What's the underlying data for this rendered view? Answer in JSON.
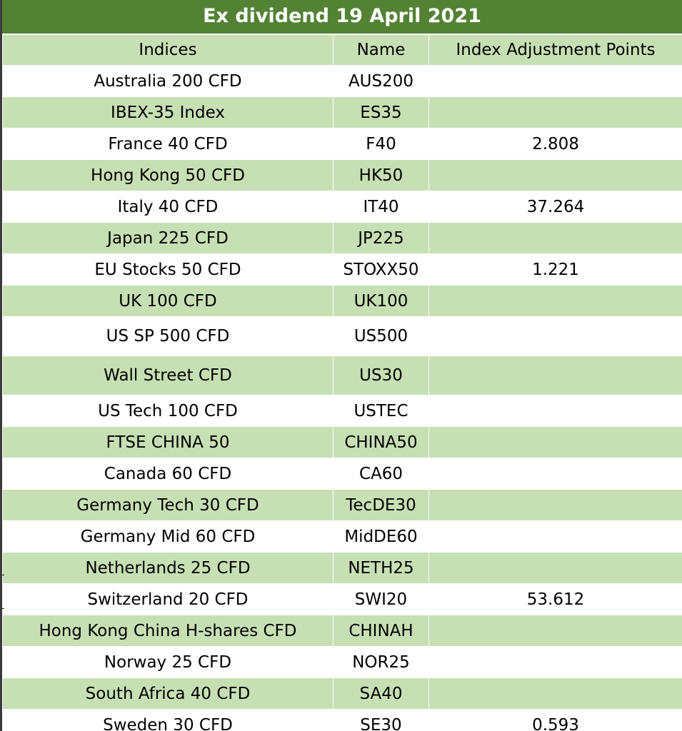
{
  "title": "Ex dividend 19 April 2021",
  "colors": {
    "title_bg": "#548235",
    "header_bg": "#c6e0b4",
    "row_light": "#ffffff",
    "row_green": "#c6e0b4",
    "grid": "#ffffff"
  },
  "table": {
    "headers": [
      "Indices",
      "Name",
      "Index Adjustment Points"
    ],
    "rows": [
      {
        "index": "Australia 200 CFD",
        "name": "AUS200",
        "points": ""
      },
      {
        "index": "IBEX-35 Index",
        "name": "ES35",
        "points": ""
      },
      {
        "index": "France 40 CFD",
        "name": "F40",
        "points": "2.808"
      },
      {
        "index": "Hong Kong 50 CFD",
        "name": "HK50",
        "points": ""
      },
      {
        "index": "Italy 40 CFD",
        "name": "IT40",
        "points": "37.264"
      },
      {
        "index": "Japan 225 CFD",
        "name": "JP225",
        "points": ""
      },
      {
        "index": "EU Stocks 50 CFD",
        "name": "STOXX50",
        "points": "1.221"
      },
      {
        "index": "UK 100 CFD",
        "name": "UK100",
        "points": ""
      },
      {
        "index": "US SP 500 CFD",
        "name": "US500",
        "points": ""
      },
      {
        "index": "Wall Street CFD",
        "name": "US30",
        "points": ""
      },
      {
        "index": "US Tech 100 CFD",
        "name": "USTEC",
        "points": ""
      },
      {
        "index": "FTSE CHINA 50",
        "name": "CHINA50",
        "points": ""
      },
      {
        "index": "Canada 60 CFD",
        "name": "CA60",
        "points": ""
      },
      {
        "index": "Germany Tech 30 CFD",
        "name": "TecDE30",
        "points": ""
      },
      {
        "index": "Germany Mid 60 CFD",
        "name": "MidDE60",
        "points": ""
      },
      {
        "index": "Netherlands 25 CFD",
        "name": "NETH25",
        "points": ""
      },
      {
        "index": "Switzerland 20 CFD",
        "name": "SWI20",
        "points": "53.612"
      },
      {
        "index": "Hong Kong China H-shares CFD",
        "name": "CHINAH",
        "points": ""
      },
      {
        "index": "Norway 25 CFD",
        "name": "NOR25",
        "points": ""
      },
      {
        "index": "South Africa 40 CFD",
        "name": "SA40",
        "points": ""
      },
      {
        "index": "Sweden 30 CFD",
        "name": "SE30",
        "points": "0.593"
      }
    ]
  }
}
